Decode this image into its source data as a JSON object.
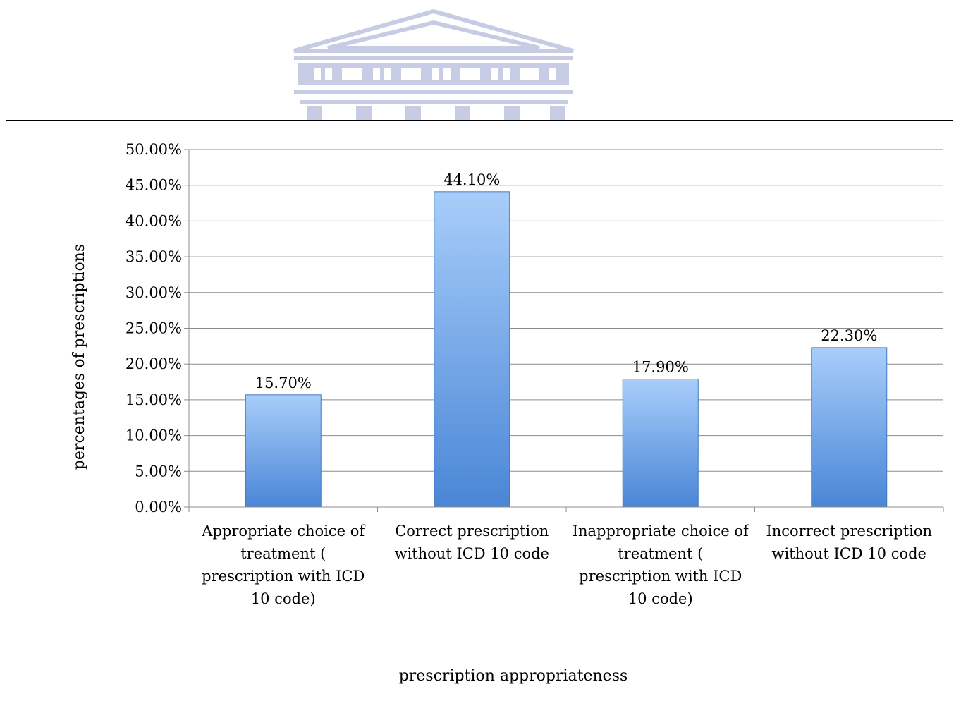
{
  "chart_data": {
    "type": "bar",
    "categories": [
      [
        "Appropriate choice of",
        "treatment (",
        "prescription with ICD",
        "10 code)"
      ],
      [
        "Correct prescription",
        "without ICD 10 code"
      ],
      [
        "Inappropriate choice of",
        "treatment (",
        "prescription with ICD",
        "10 code)"
      ],
      [
        "Incorrect prescription",
        "without ICD 10 code"
      ]
    ],
    "values": [
      15.7,
      44.1,
      17.9,
      22.3
    ],
    "data_labels": [
      "15.70%",
      "44.10%",
      "17.90%",
      "22.30%"
    ],
    "ylim": [
      0,
      50
    ],
    "yticks": [
      0,
      5,
      10,
      15,
      20,
      25,
      30,
      35,
      40,
      45,
      50
    ],
    "ytick_labels": [
      "0.00%",
      "5.00%",
      "10.00%",
      "15.00%",
      "20.00%",
      "25.00%",
      "30.00%",
      "35.00%",
      "40.00%",
      "45.00%",
      "50.00%"
    ],
    "xlabel": "prescription appropriateness",
    "ylabel": "percentages of prescriptions",
    "title": "",
    "grid": true,
    "legend": "none",
    "bar_color_light": "#a8cdfa",
    "bar_color_dark": "#4a86d6"
  }
}
